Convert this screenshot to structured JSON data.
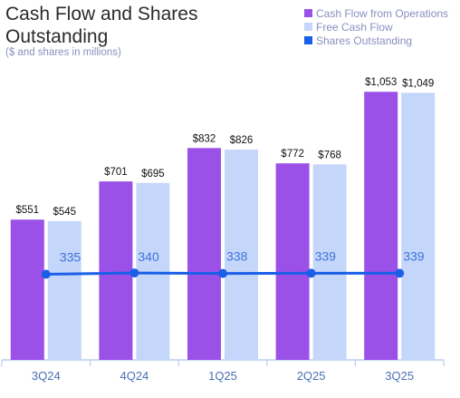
{
  "title_lines": [
    "Cash Flow and Shares",
    "Outstanding"
  ],
  "subtitle": "($ and shares in millions)",
  "colors": {
    "operations": "#9b51e8",
    "free": "#c5d6fb",
    "shares": "#1a5fe8",
    "axis": "#b9cdef",
    "tick_text": "#4a6fb5",
    "bar_label": "#111111"
  },
  "legend": [
    {
      "label": "Cash Flow from Operations",
      "color": "#9b51e8"
    },
    {
      "label": "Free Cash Flow",
      "color": "#c5d6fb"
    },
    {
      "label": "Shares Outstanding",
      "color": "#1a5fe8"
    }
  ],
  "chart_data": {
    "type": "bar",
    "categories": [
      "3Q24",
      "4Q24",
      "1Q25",
      "2Q25",
      "3Q25"
    ],
    "series": [
      {
        "name": "Cash Flow from Operations",
        "values": [
          551,
          701,
          832,
          772,
          1053
        ],
        "labels": [
          "$551",
          "$701",
          "$832",
          "$772",
          "$1,053"
        ],
        "color": "#9b51e8"
      },
      {
        "name": "Free Cash Flow",
        "values": [
          545,
          695,
          826,
          768,
          1049
        ],
        "labels": [
          "$545",
          "$695",
          "$826",
          "$768",
          "$1,049"
        ],
        "color": "#c5d6fb"
      }
    ],
    "line_series": {
      "name": "Shares Outstanding",
      "values": [
        335,
        340,
        338,
        339,
        339
      ],
      "labels": [
        "335",
        "340",
        "338",
        "339",
        "339"
      ],
      "color": "#1a5fe8"
    },
    "ylim": [
      0,
      1150
    ],
    "line_ylim": [
      0,
      1145
    ],
    "grid": false,
    "legend_position": "top-right"
  }
}
